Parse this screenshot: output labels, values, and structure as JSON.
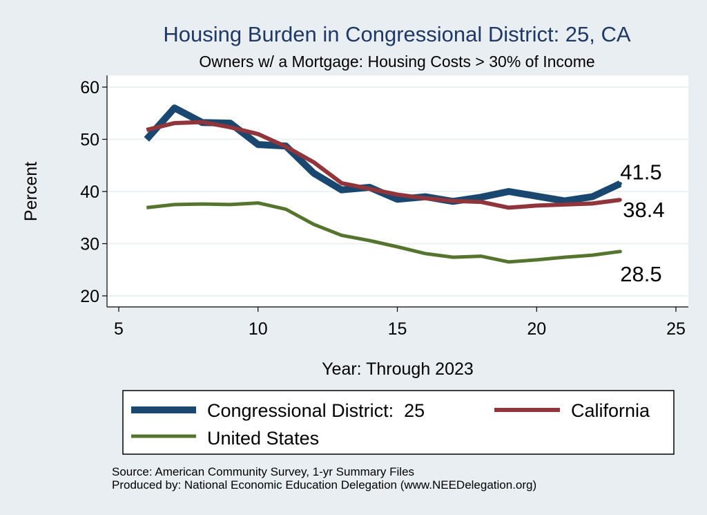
{
  "chart_data": {
    "type": "line",
    "title": "Housing Burden in Congressional District:  25, CA",
    "subtitle": "Owners w/ a Mortgage: Housing Costs > 30% of Income",
    "xlabel": "Year: Through 2023",
    "ylabel": "Percent",
    "xlim": [
      5,
      25
    ],
    "ylim": [
      20,
      60
    ],
    "xticks": [
      5,
      10,
      15,
      20,
      25
    ],
    "yticks": [
      20,
      30,
      40,
      50,
      60
    ],
    "grid": true,
    "x": [
      6,
      7,
      8,
      9,
      10,
      11,
      12,
      13,
      14,
      15,
      16,
      17,
      18,
      19,
      20,
      21,
      22,
      23
    ],
    "series": [
      {
        "name": "Congressional District:  25",
        "color": "#1a476f",
        "end_label": "41.5",
        "values": [
          50.0,
          56.0,
          53.2,
          53.1,
          49.0,
          48.7,
          43.5,
          40.3,
          40.8,
          38.5,
          39.0,
          38.1,
          38.9,
          40.0,
          39.1,
          38.2,
          39.0,
          41.5
        ]
      },
      {
        "name": "California",
        "color": "#90353b",
        "end_label": "38.4",
        "values": [
          51.8,
          53.1,
          53.3,
          52.3,
          51.0,
          48.6,
          45.6,
          41.6,
          40.5,
          39.4,
          38.7,
          38.2,
          38.0,
          36.9,
          37.3,
          37.5,
          37.7,
          38.4
        ]
      },
      {
        "name": "United States",
        "color": "#55752f",
        "end_label": "28.5",
        "values": [
          36.9,
          37.5,
          37.6,
          37.5,
          37.8,
          36.6,
          33.7,
          31.6,
          30.6,
          29.4,
          28.1,
          27.4,
          27.6,
          26.5,
          26.9,
          27.4,
          27.8,
          28.5
        ]
      }
    ],
    "legend": {
      "placement": "bottom",
      "columns": 2
    }
  },
  "source": {
    "line1": "Source: American Community Survey, 1-yr Summary Files",
    "line2": "Produced by: National Economic Education Delegation (www.NEEDelegation.org)"
  }
}
